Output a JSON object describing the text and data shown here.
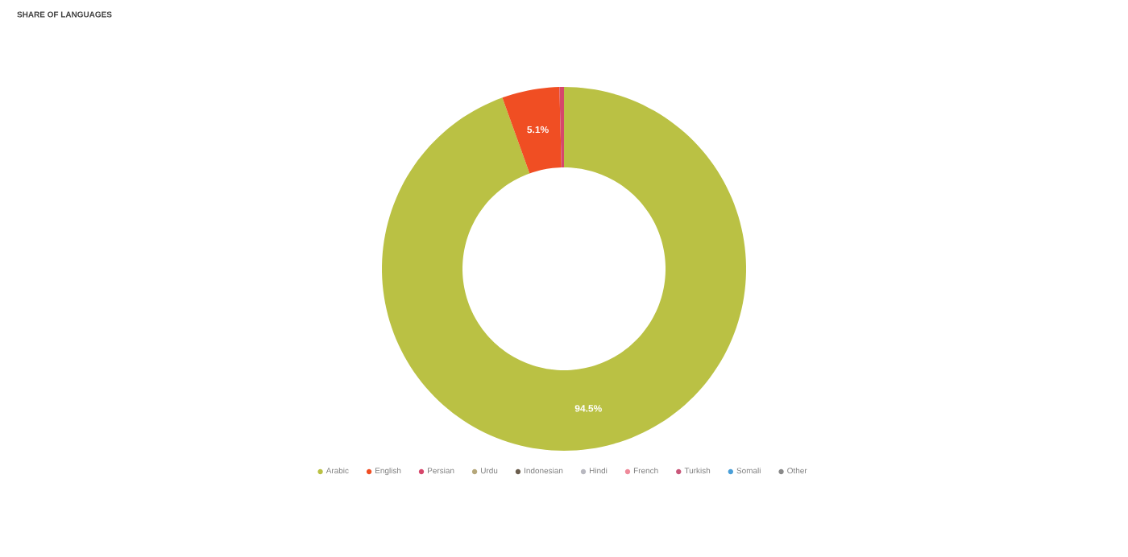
{
  "chart_data": {
    "type": "donut",
    "title": "SHARE OF LANGUAGES",
    "categories": [
      "Arabic",
      "English",
      "Persian",
      "Urdu",
      "Indonesian",
      "Hindi",
      "French",
      "Turkish",
      "Somali",
      "Other"
    ],
    "values": [
      94.5,
      5.1,
      0.4,
      null,
      null,
      null,
      null,
      null,
      null,
      null
    ],
    "colors": [
      "#bac144",
      "#f04e23",
      "#d6476b",
      "#b5a77a",
      "#6b5e4e",
      "#b8b8c0",
      "#ef8a9a",
      "#c9577a",
      "#4a9fd8",
      "#8a8a8a"
    ],
    "value_labels": [
      "94.5%",
      "5.1%",
      null,
      null,
      null,
      null,
      null,
      null,
      null,
      null
    ],
    "legend": "bottom"
  }
}
